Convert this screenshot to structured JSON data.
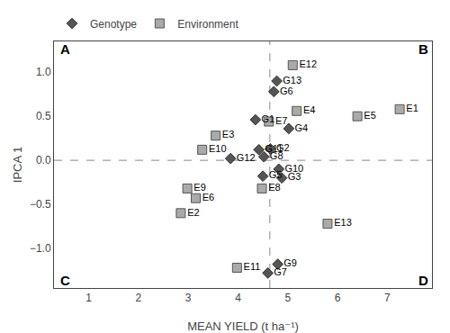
{
  "chart_data": {
    "type": "scatter",
    "xlabel": "MEAN YIELD (t ha⁻¹)",
    "ylabel": "IPCA 1",
    "xlim": [
      0.3,
      7.9
    ],
    "ylim": [
      -1.45,
      1.35
    ],
    "xticks": [
      1,
      2,
      3,
      4,
      5,
      6,
      7
    ],
    "yticks": [
      {
        "value": -1.0,
        "label": "−1.0"
      },
      {
        "value": -0.5,
        "label": "−0.5"
      },
      {
        "value": 0.0,
        "label": "0.0"
      },
      {
        "value": 0.5,
        "label": "0.5"
      },
      {
        "value": 1.0,
        "label": "1.0"
      }
    ],
    "grid": false,
    "legend": "upper left",
    "series": [
      {
        "name": "Genotype",
        "color": "#555555",
        "marker": "diamond",
        "labels": [
          "G1",
          "G2",
          "G3",
          "G4",
          "G5",
          "G6",
          "G7",
          "G8",
          "G9",
          "G10",
          "G11",
          "G12",
          "G13"
        ],
        "x": [
          4.35,
          4.65,
          4.88,
          5.02,
          4.5,
          4.72,
          4.6,
          4.52,
          4.8,
          4.82,
          4.42,
          3.85,
          4.78
        ],
        "values": [
          0.46,
          0.13,
          -0.2,
          0.36,
          -0.18,
          0.78,
          -1.28,
          0.04,
          -1.18,
          -0.1,
          0.12,
          0.02,
          0.9
        ]
      },
      {
        "name": "Environment",
        "color": "#aaaaaa",
        "marker": "square",
        "labels": [
          "E1",
          "E2",
          "E3",
          "E4",
          "E5",
          "E6",
          "E7",
          "E8",
          "E9",
          "E10",
          "E11",
          "E12",
          "E13"
        ],
        "x": [
          7.25,
          2.85,
          3.55,
          5.18,
          6.4,
          3.15,
          4.62,
          4.48,
          2.98,
          3.28,
          3.98,
          5.1,
          5.8
        ],
        "values": [
          0.58,
          -0.6,
          0.28,
          0.56,
          0.5,
          -0.43,
          0.44,
          -0.32,
          -0.32,
          0.12,
          -1.22,
          1.08,
          -0.72
        ]
      }
    ],
    "hlines": [
      0.0
    ],
    "vlines": [
      4.64
    ],
    "annotations": [
      {
        "text": "A",
        "x": 0.52,
        "y": 1.26
      },
      {
        "text": "B",
        "x": 7.72,
        "y": 1.26
      },
      {
        "text": "C",
        "x": 0.52,
        "y": -1.36
      },
      {
        "text": "D",
        "x": 7.72,
        "y": -1.36
      }
    ]
  }
}
